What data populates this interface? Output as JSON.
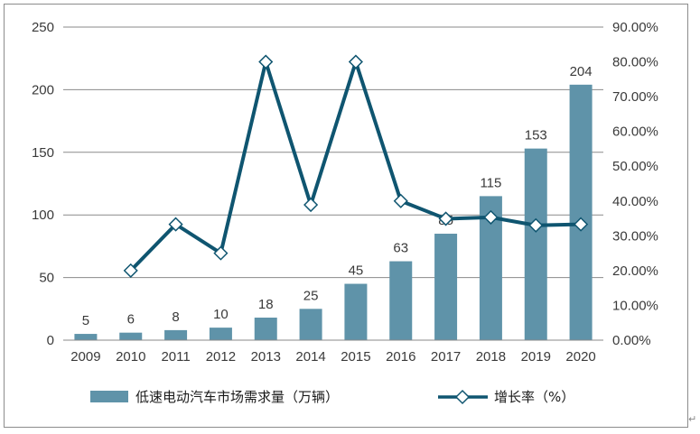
{
  "chart_data": {
    "type": "bar+line",
    "categories": [
      "2009",
      "2010",
      "2011",
      "2012",
      "2013",
      "2014",
      "2015",
      "2016",
      "2017",
      "2018",
      "2019",
      "2020"
    ],
    "series": [
      {
        "name": "低速电动汽车市场需求量（万辆）",
        "type": "bar",
        "axis": "left",
        "values": [
          5,
          6,
          8,
          10,
          18,
          25,
          45,
          63,
          85,
          115,
          153,
          204
        ],
        "labels": [
          "5",
          "6",
          "8",
          "10",
          "18",
          "25",
          "45",
          "63",
          "85",
          "115",
          "153",
          "204"
        ],
        "color": "#5f93a9"
      },
      {
        "name": "增长率（%）",
        "type": "line",
        "axis": "right",
        "values": [
          null,
          20.0,
          33.3,
          25.0,
          80.0,
          38.9,
          80.0,
          40.0,
          34.9,
          35.3,
          33.0,
          33.3
        ],
        "color": "#0f5570"
      }
    ],
    "y_left": {
      "min": 0,
      "max": 250,
      "ticks": [
        "0",
        "50",
        "100",
        "150",
        "200",
        "250"
      ]
    },
    "y_right": {
      "min": 0,
      "max": 90,
      "ticks": [
        "0.00%",
        "10.00%",
        "20.00%",
        "30.00%",
        "40.00%",
        "50.00%",
        "60.00%",
        "70.00%",
        "80.00%",
        "90.00%"
      ]
    },
    "grid": true,
    "legend_position": "bottom",
    "title": "",
    "xlabel": "",
    "ylabel": ""
  }
}
